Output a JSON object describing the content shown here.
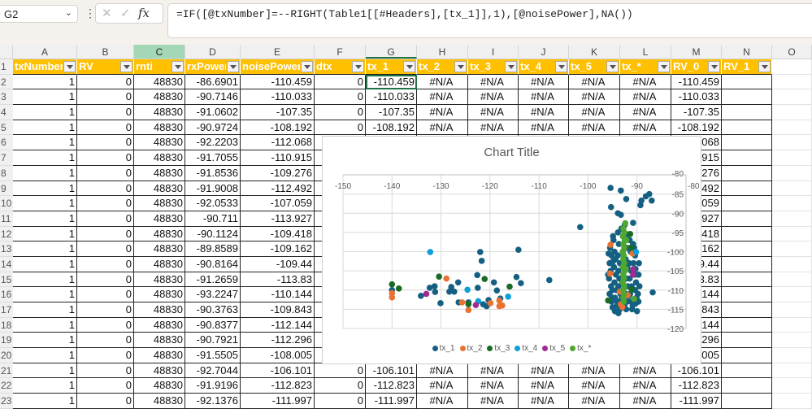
{
  "name_box": "G2",
  "formula_icons": {
    "cancel": "✕",
    "enter": "✓",
    "fx": "fx"
  },
  "formula": "=IF([@txNumber]=--RIGHT(Table1[[#Headers],[tx_1]],1),[@noisePower],NA())",
  "columns": [
    "A",
    "B",
    "C",
    "D",
    "E",
    "F",
    "G",
    "H",
    "I",
    "J",
    "K",
    "L",
    "M",
    "N",
    "O"
  ],
  "headers": [
    "txNumber",
    "RV",
    "rnti",
    "rxPower",
    "noisePower",
    "dtx",
    "tx_1",
    "tx_2",
    "tx_3",
    "tx_4",
    "tx_5",
    "tx_*",
    "RV_0",
    "RV_1"
  ],
  "rows": [
    [
      "1",
      "0",
      "48830",
      "-86.6901",
      "-110.459",
      "0",
      "-110.459",
      "#N/A",
      "#N/A",
      "#N/A",
      "#N/A",
      "#N/A",
      "-110.459",
      ""
    ],
    [
      "1",
      "0",
      "48830",
      "-90.7146",
      "-110.033",
      "0",
      "-110.033",
      "#N/A",
      "#N/A",
      "#N/A",
      "#N/A",
      "#N/A",
      "-110.033",
      ""
    ],
    [
      "1",
      "0",
      "48830",
      "-91.0602",
      "-107.35",
      "0",
      "-107.35",
      "#N/A",
      "#N/A",
      "#N/A",
      "#N/A",
      "#N/A",
      "-107.35",
      ""
    ],
    [
      "1",
      "0",
      "48830",
      "-90.9724",
      "-108.192",
      "0",
      "-108.192",
      "#N/A",
      "#N/A",
      "#N/A",
      "#N/A",
      "#N/A",
      "-108.192",
      ""
    ],
    [
      "1",
      "0",
      "48830",
      "-92.2203",
      "-112.068",
      null,
      null,
      null,
      null,
      null,
      null,
      null,
      "-112.068",
      ""
    ],
    [
      "1",
      "0",
      "48830",
      "-91.7055",
      "-110.915",
      null,
      null,
      null,
      null,
      null,
      null,
      null,
      "-110.915",
      ""
    ],
    [
      "1",
      "0",
      "48830",
      "-91.8536",
      "-109.276",
      null,
      null,
      null,
      null,
      null,
      null,
      null,
      "-109.276",
      ""
    ],
    [
      "1",
      "0",
      "48830",
      "-91.9008",
      "-112.492",
      null,
      null,
      null,
      null,
      null,
      null,
      null,
      "-112.492",
      ""
    ],
    [
      "1",
      "0",
      "48830",
      "-92.0533",
      "-107.059",
      null,
      null,
      null,
      null,
      null,
      null,
      null,
      "-107.059",
      ""
    ],
    [
      "1",
      "0",
      "48830",
      "-90.711",
      "-113.927",
      null,
      null,
      null,
      null,
      null,
      null,
      null,
      "-113.927",
      ""
    ],
    [
      "1",
      "0",
      "48830",
      "-90.1124",
      "-109.418",
      null,
      null,
      null,
      null,
      null,
      null,
      null,
      "-109.418",
      ""
    ],
    [
      "1",
      "0",
      "48830",
      "-89.8589",
      "-109.162",
      null,
      null,
      null,
      null,
      null,
      null,
      null,
      "-109.162",
      ""
    ],
    [
      "1",
      "0",
      "48830",
      "-90.8164",
      "-109.44",
      null,
      null,
      null,
      null,
      null,
      null,
      null,
      "-109.44",
      ""
    ],
    [
      "1",
      "0",
      "48830",
      "-91.2659",
      "-113.83",
      null,
      null,
      null,
      null,
      null,
      null,
      null,
      "-113.83",
      ""
    ],
    [
      "1",
      "0",
      "48830",
      "-93.2247",
      "-110.144",
      null,
      null,
      null,
      null,
      null,
      null,
      null,
      "-110.144",
      ""
    ],
    [
      "1",
      "0",
      "48830",
      "-90.3763",
      "-109.843",
      null,
      null,
      null,
      null,
      null,
      null,
      null,
      "-109.843",
      ""
    ],
    [
      "1",
      "0",
      "48830",
      "-90.8377",
      "-112.144",
      null,
      null,
      null,
      null,
      null,
      null,
      null,
      "-112.144",
      ""
    ],
    [
      "1",
      "0",
      "48830",
      "-90.7921",
      "-112.296",
      null,
      null,
      null,
      null,
      null,
      null,
      null,
      "-112.296",
      ""
    ],
    [
      "1",
      "0",
      "48830",
      "-91.5505",
      "-108.005",
      null,
      null,
      null,
      null,
      null,
      null,
      null,
      "-108.005",
      ""
    ],
    [
      "1",
      "0",
      "48830",
      "-92.7044",
      "-106.101",
      "0",
      "-106.101",
      "#N/A",
      "#N/A",
      "#N/A",
      "#N/A",
      "#N/A",
      "-106.101",
      ""
    ],
    [
      "1",
      "0",
      "48830",
      "-91.9196",
      "-112.823",
      "0",
      "-112.823",
      "#N/A",
      "#N/A",
      "#N/A",
      "#N/A",
      "#N/A",
      "-112.823",
      ""
    ],
    [
      "1",
      "0",
      "48830",
      "-92.1376",
      "-111.997",
      "0",
      "-111.997",
      "#N/A",
      "#N/A",
      "#N/A",
      "#N/A",
      "#N/A",
      "-111.997",
      ""
    ]
  ],
  "chart_data": {
    "type": "scatter",
    "title": "Chart Title",
    "xlabel": "",
    "ylabel": "",
    "xlim": [
      -150,
      -80
    ],
    "ylim": [
      -120,
      -80
    ],
    "xticks": [
      -150,
      -140,
      -130,
      -120,
      -110,
      -100,
      -90,
      -80
    ],
    "yticks": [
      -80,
      -85,
      -90,
      -95,
      -100,
      -105,
      -110,
      -115,
      -120
    ],
    "grid": true,
    "legend": "bottom",
    "series": [
      {
        "name": "tx_1",
        "color": "#156082",
        "points": [
          [
            -95.4,
            -83.4
          ],
          [
            -93.3,
            -84.1
          ],
          [
            -92.2,
            -86.3
          ],
          [
            -95.3,
            -88.4
          ],
          [
            -88.2,
            -85.6
          ],
          [
            -87.5,
            -85
          ],
          [
            -89.1,
            -86.7
          ],
          [
            -87,
            -86.7
          ],
          [
            -89.3,
            -87.9
          ],
          [
            -93.9,
            -90
          ],
          [
            -93.3,
            -90.4
          ],
          [
            -90.8,
            -92.5
          ],
          [
            -101.6,
            -93.6
          ],
          [
            -86.8,
            -110.6
          ],
          [
            -140,
            -110
          ],
          [
            -134.1,
            -111.5
          ],
          [
            -132.3,
            -109.4
          ],
          [
            -131.3,
            -109
          ],
          [
            -131.2,
            -110.5
          ],
          [
            -130.1,
            -113.4
          ],
          [
            -128.3,
            -110.4
          ],
          [
            -127.9,
            -109.2
          ],
          [
            -127.3,
            -110.4
          ],
          [
            -126.5,
            -108
          ],
          [
            -126.4,
            -113.2
          ],
          [
            -124.4,
            -113.2
          ],
          [
            -122,
            -100.1
          ],
          [
            -121.7,
            -102.4
          ],
          [
            -122.6,
            -106.1
          ],
          [
            -122.5,
            -109.4
          ],
          [
            -121.4,
            -113.7
          ],
          [
            -120.7,
            -114.2
          ],
          [
            -120.3,
            -112.6
          ],
          [
            -119.2,
            -108
          ],
          [
            -118.6,
            -110.1
          ],
          [
            -117.9,
            -112.2
          ],
          [
            -114.6,
            -106.6
          ],
          [
            -114.2,
            -99.5
          ],
          [
            -113.7,
            -108.2
          ],
          [
            -107.9,
            -107.4
          ],
          [
            -95.5,
            -99
          ],
          [
            -95.2,
            -101
          ],
          [
            -95.6,
            -103
          ],
          [
            -95.4,
            -105
          ],
          [
            -95.7,
            -107
          ],
          [
            -95.3,
            -109
          ],
          [
            -95.6,
            -111
          ],
          [
            -95.2,
            -113
          ],
          [
            -95,
            -114.5
          ],
          [
            -94.5,
            -115.5
          ],
          [
            -94.8,
            -97
          ],
          [
            -94.6,
            -100
          ],
          [
            -94.4,
            -102
          ],
          [
            -94.7,
            -104
          ],
          [
            -94.3,
            -106
          ],
          [
            -94.6,
            -108
          ],
          [
            -94.2,
            -110
          ],
          [
            -94.5,
            -112
          ],
          [
            -94.1,
            -114
          ],
          [
            -93.8,
            -116
          ],
          [
            -93.9,
            -95
          ],
          [
            -93.7,
            -98
          ],
          [
            -93.9,
            -101
          ],
          [
            -93.5,
            -103
          ],
          [
            -93.8,
            -105
          ],
          [
            -93.6,
            -107
          ],
          [
            -93.8,
            -109
          ],
          [
            -93.4,
            -111
          ],
          [
            -93.7,
            -113
          ],
          [
            -93.5,
            -115
          ],
          [
            -92.8,
            -96
          ],
          [
            -92.5,
            -93
          ],
          [
            -92.1,
            -99
          ],
          [
            -92.3,
            -102
          ],
          [
            -92,
            -104
          ],
          [
            -92.2,
            -107
          ],
          [
            -91.9,
            -109
          ],
          [
            -92.3,
            -111
          ],
          [
            -92,
            -113
          ],
          [
            -92.2,
            -115
          ],
          [
            -91.5,
            -97
          ],
          [
            -91.3,
            -100
          ],
          [
            -91.6,
            -103
          ],
          [
            -91.2,
            -105
          ],
          [
            -91.5,
            -107
          ],
          [
            -91.1,
            -109
          ],
          [
            -91.4,
            -111
          ],
          [
            -91.2,
            -113
          ],
          [
            -91,
            -115
          ],
          [
            -90.6,
            -99
          ],
          [
            -90.4,
            -101
          ],
          [
            -90.7,
            -103
          ],
          [
            -90.3,
            -104.5
          ],
          [
            -90.5,
            -106
          ],
          [
            -90.2,
            -108
          ],
          [
            -90.4,
            -110
          ],
          [
            -90.1,
            -112
          ],
          [
            -90.3,
            -113.5
          ],
          [
            -90,
            -115.5
          ],
          [
            -89.6,
            -103
          ],
          [
            -89.7,
            -106
          ],
          [
            -89.5,
            -109
          ],
          [
            -89.8,
            -111
          ],
          [
            -89.7,
            -113
          ],
          [
            -94.9,
            -96
          ],
          [
            -93.2,
            -94
          ],
          [
            -91.8,
            -95.5
          ],
          [
            -90.8,
            -98
          ],
          [
            -95.8,
            -100.5
          ],
          [
            -95.9,
            -106
          ],
          [
            -95.1,
            -112
          ],
          [
            -94,
            -113
          ],
          [
            -93.1,
            -112
          ],
          [
            -92.6,
            -114
          ],
          [
            -95,
            -110
          ],
          [
            -94.9,
            -102.5
          ],
          [
            -92.9,
            -100
          ],
          [
            -93,
            -108
          ],
          [
            -91.7,
            -111.5
          ],
          [
            -90.9,
            -114
          ]
        ]
      },
      {
        "name": "tx_2",
        "color": "#e97132",
        "points": [
          [
            -140,
            -110.8
          ],
          [
            -140,
            -111.9
          ],
          [
            -128.9,
            -107
          ],
          [
            -125.7,
            -113.2
          ],
          [
            -124.4,
            -115.2
          ],
          [
            -119.9,
            -113.4
          ],
          [
            -118.1,
            -112.7
          ],
          [
            -118.1,
            -114.2
          ],
          [
            -117.5,
            -114
          ],
          [
            -95.4,
            -98.2
          ],
          [
            -95.5,
            -105.7
          ],
          [
            -90.9,
            -100.5
          ],
          [
            -93.5,
            -110.4
          ],
          [
            -93.3,
            -113.7
          ],
          [
            -93,
            -114.4
          ],
          [
            -91.9,
            -111.3
          ]
        ]
      },
      {
        "name": "tx_3",
        "color": "#196b24",
        "points": [
          [
            -140,
            -108.5
          ],
          [
            -138.6,
            -109.6
          ],
          [
            -130.4,
            -106.5
          ],
          [
            -124.4,
            -113.7
          ],
          [
            -121.1,
            -107.1
          ],
          [
            -116,
            -109.1
          ],
          [
            -91.4,
            -95.4
          ],
          [
            -91.2,
            -98.9
          ],
          [
            -91.1,
            -109.8
          ],
          [
            -95.9,
            -112.7
          ]
        ]
      },
      {
        "name": "tx_4",
        "color": "#0f9ed5",
        "points": [
          [
            -132.2,
            -100.1
          ],
          [
            -124.6,
            -109.9
          ],
          [
            -122.4,
            -112.9
          ],
          [
            -116.3,
            -111.7
          ],
          [
            -90.2,
            -100.1
          ]
        ]
      },
      {
        "name": "tx_5",
        "color": "#a02b93",
        "points": [
          [
            -133,
            -111
          ],
          [
            -122.9,
            -113.9
          ],
          [
            -90.8,
            -104.6
          ],
          [
            -90.8,
            -106
          ]
        ]
      },
      {
        "name": "tx_*",
        "color": "#4ea72e",
        "points": [
          [
            -92.4,
            -92.6
          ],
          [
            -92.8,
            -94
          ],
          [
            -92.6,
            -95
          ],
          [
            -92.9,
            -96
          ],
          [
            -92.5,
            -97
          ],
          [
            -92.8,
            -98
          ],
          [
            -92.6,
            -99
          ],
          [
            -92.9,
            -100
          ],
          [
            -92.7,
            -101
          ],
          [
            -92.8,
            -102
          ],
          [
            -92.6,
            -103
          ],
          [
            -92.9,
            -104
          ],
          [
            -92.5,
            -105
          ],
          [
            -92.8,
            -106
          ],
          [
            -92.7,
            -107
          ],
          [
            -92.9,
            -108
          ],
          [
            -92.6,
            -109
          ],
          [
            -92.8,
            -110
          ],
          [
            -92.7,
            -111
          ],
          [
            -92.8,
            -112
          ],
          [
            -92.7,
            -113
          ],
          [
            -92.2,
            -97
          ],
          [
            -92.3,
            -104.5
          ],
          [
            -90.6,
            -112.3
          ]
        ]
      }
    ]
  }
}
